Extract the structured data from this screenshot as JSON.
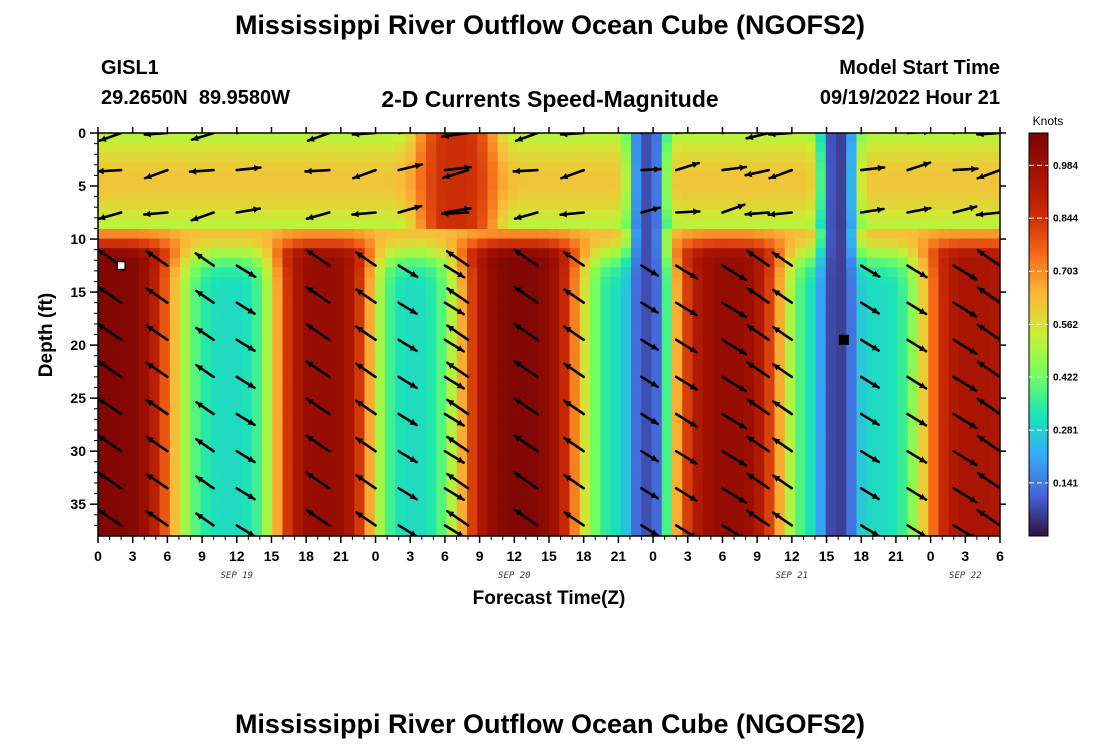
{
  "header": {
    "title": "Mississippi River Outflow Ocean Cube (NGOFS2)",
    "station_name": "GISL1",
    "station_coords": "29.2650N  89.9580W",
    "subtitle": "2-D Currents Speed-Magnitude",
    "model_start_label": "Model Start Time",
    "model_start_value": "09/19/2022 Hour 21"
  },
  "footer": {
    "title": "Mississippi River Outflow Ocean Cube (NGOFS2)"
  },
  "chart_data": {
    "type": "heatmap",
    "title": "2-D Currents Speed-Magnitude",
    "xlabel": "Forecast Time(Z)",
    "ylabel": "Depth (ft)",
    "xlim": [
      0,
      78
    ],
    "ylim": [
      38,
      0
    ],
    "x_tick_values": [
      0,
      3,
      6,
      9,
      12,
      15,
      18,
      21,
      24,
      27,
      30,
      33,
      36,
      39,
      42,
      45,
      48,
      51,
      54,
      57,
      60,
      63,
      66,
      69,
      72,
      75,
      78
    ],
    "x_tick_labels": [
      "0",
      "3",
      "6",
      "9",
      "12",
      "15",
      "18",
      "21",
      "0",
      "3",
      "6",
      "9",
      "12",
      "15",
      "18",
      "21",
      "0",
      "3",
      "6",
      "9",
      "12",
      "15",
      "18",
      "21",
      "0",
      "3",
      "6"
    ],
    "y_ticks": [
      0,
      5,
      10,
      15,
      20,
      25,
      30,
      35
    ],
    "y_tick_labels": [
      "0",
      "5",
      "10",
      "15",
      "20",
      "25",
      "30",
      "35"
    ],
    "date_labels": [
      {
        "x": 12,
        "label": "SEP 19"
      },
      {
        "x": 36,
        "label": "SEP 20"
      },
      {
        "x": 60,
        "label": "SEP 21"
      },
      {
        "x": 75,
        "label": "SEP 22"
      }
    ],
    "colorbar": {
      "units": "Knots",
      "min": 0,
      "max": 1.07,
      "tick_values": [
        0.141,
        0.281,
        0.422,
        0.562,
        0.703,
        0.844,
        0.984
      ],
      "tick_labels": [
        "0.141",
        "0.281",
        "0.422",
        "0.562",
        "0.703",
        "0.844",
        "0.984"
      ]
    },
    "surface_depth_limit_ft": 9,
    "peaks": [
      {
        "x": 1,
        "half_width": 6,
        "subsurface": 1.05,
        "surface": 0.1
      },
      {
        "x": 19.5,
        "half_width": 4.5,
        "subsurface": 1.0,
        "surface": 0.15
      },
      {
        "x": 31,
        "half_width": 3.5,
        "subsurface": 0.0,
        "surface": 0.85
      },
      {
        "x": 36.5,
        "half_width": 5.5,
        "subsurface": 1.05,
        "surface": 0.3
      },
      {
        "x": 54.5,
        "half_width": 5.0,
        "subsurface": 1.0,
        "surface": 0.15
      },
      {
        "x": 76,
        "half_width": 5.0,
        "subsurface": 0.95,
        "surface": 0.15
      }
    ],
    "minima": [
      {
        "x": 47.5,
        "speed": 0.08
      },
      {
        "x": 64,
        "speed": 0.06
      }
    ],
    "background_speed": {
      "deep": 0.3,
      "mid_depth": 0.62,
      "surface": 0.5
    },
    "vector_x": [
      2,
      6,
      10,
      12,
      20,
      24,
      26,
      30,
      32,
      38,
      42,
      47,
      50,
      54,
      58,
      60,
      66,
      70,
      74,
      78
    ],
    "vector_depth": [
      0,
      3.5,
      7.5,
      12.5,
      16,
      19.5,
      23,
      26.5,
      30,
      33.5,
      37
    ],
    "marker": {
      "x": 64.5,
      "depth": 19.5
    },
    "white_marker": {
      "x": 2,
      "depth": 12.5
    }
  }
}
